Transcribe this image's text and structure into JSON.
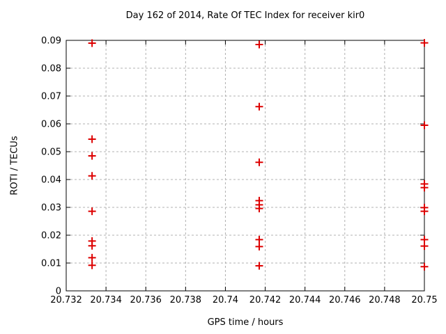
{
  "chart_data": {
    "type": "scatter",
    "title": "Day 162 of 2014, Rate Of TEC Index for receiver kir0",
    "xlabel": "GPS time / hours",
    "ylabel": "ROTI / TECUs",
    "xlim": [
      20.732,
      20.75
    ],
    "ylim": [
      0,
      0.09
    ],
    "grid": true,
    "legend": "none",
    "background": "#ffffff",
    "axis_color": "#000000",
    "grid_color": "#b0b0b0",
    "marker": {
      "shape": "plus",
      "color": "#dd0000",
      "size": 11,
      "stroke_width": 2
    },
    "xticks": [
      {
        "v": 20.732,
        "label": "20.732"
      },
      {
        "v": 20.734,
        "label": "20.734"
      },
      {
        "v": 20.736,
        "label": "20.736"
      },
      {
        "v": 20.738,
        "label": "20.738"
      },
      {
        "v": 20.74,
        "label": "20.74"
      },
      {
        "v": 20.742,
        "label": "20.742"
      },
      {
        "v": 20.744,
        "label": "20.744"
      },
      {
        "v": 20.746,
        "label": "20.746"
      },
      {
        "v": 20.748,
        "label": "20.748"
      },
      {
        "v": 20.75,
        "label": "20.75"
      }
    ],
    "yticks": [
      {
        "v": 0,
        "label": "0"
      },
      {
        "v": 0.01,
        "label": "0.01"
      },
      {
        "v": 0.02,
        "label": "0.02"
      },
      {
        "v": 0.03,
        "label": "0.03"
      },
      {
        "v": 0.04,
        "label": "0.04"
      },
      {
        "v": 0.05,
        "label": "0.05"
      },
      {
        "v": 0.06,
        "label": "0.06"
      },
      {
        "v": 0.07,
        "label": "0.07"
      },
      {
        "v": 0.08,
        "label": "0.08"
      },
      {
        "v": 0.09,
        "label": "0.09"
      }
    ],
    "series": [
      {
        "name": "ROTI",
        "points": [
          [
            20.7333,
            0.089
          ],
          [
            20.7333,
            0.0545
          ],
          [
            20.7333,
            0.0485
          ],
          [
            20.7333,
            0.0413
          ],
          [
            20.7333,
            0.0286
          ],
          [
            20.7333,
            0.0179
          ],
          [
            20.7333,
            0.0162
          ],
          [
            20.7333,
            0.0119
          ],
          [
            20.7333,
            0.0092
          ],
          [
            20.7417,
            0.0885
          ],
          [
            20.7417,
            0.0662
          ],
          [
            20.7417,
            0.0462
          ],
          [
            20.7417,
            0.0324
          ],
          [
            20.7417,
            0.0309
          ],
          [
            20.7417,
            0.0296
          ],
          [
            20.7417,
            0.0184
          ],
          [
            20.7417,
            0.0159
          ],
          [
            20.7417,
            0.009
          ],
          [
            20.75,
            0.0891
          ],
          [
            20.75,
            0.0595
          ],
          [
            20.75,
            0.0384
          ],
          [
            20.75,
            0.0371
          ],
          [
            20.75,
            0.0299
          ],
          [
            20.75,
            0.0286
          ],
          [
            20.75,
            0.0184
          ],
          [
            20.75,
            0.0161
          ],
          [
            20.75,
            0.0087
          ]
        ]
      }
    ]
  }
}
